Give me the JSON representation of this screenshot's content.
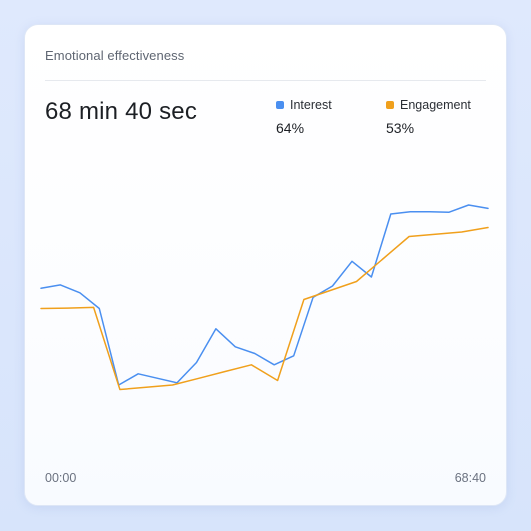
{
  "card": {
    "title": "Emotional effectiveness",
    "duration": "68 min 40 sec"
  },
  "legend": [
    {
      "name": "Interest",
      "value": "64%",
      "color": "#4a8ff0"
    },
    {
      "name": "Engagement",
      "value": "53%",
      "color": "#f0a01c"
    }
  ],
  "chart_data": {
    "type": "line",
    "x_start_label": "00:00",
    "x_end_label": "68:40",
    "ylim": [
      0,
      1
    ],
    "grid": false,
    "series": [
      {
        "name": "Interest",
        "color": "#4a8ff0",
        "values": [
          0.63,
          0.645,
          0.61,
          0.54,
          0.2,
          0.25,
          0.23,
          0.21,
          0.3,
          0.45,
          0.37,
          0.34,
          0.29,
          0.33,
          0.59,
          0.64,
          0.75,
          0.68,
          0.96,
          0.97,
          0.97,
          0.968,
          1.0,
          0.985
        ]
      },
      {
        "name": "Engagement",
        "color": "#f0a01c",
        "values": [
          0.54,
          0.542,
          0.545,
          0.18,
          0.19,
          0.2,
          0.23,
          0.26,
          0.29,
          0.22,
          0.58,
          0.62,
          0.66,
          0.76,
          0.86,
          0.87,
          0.88,
          0.9
        ]
      }
    ]
  }
}
